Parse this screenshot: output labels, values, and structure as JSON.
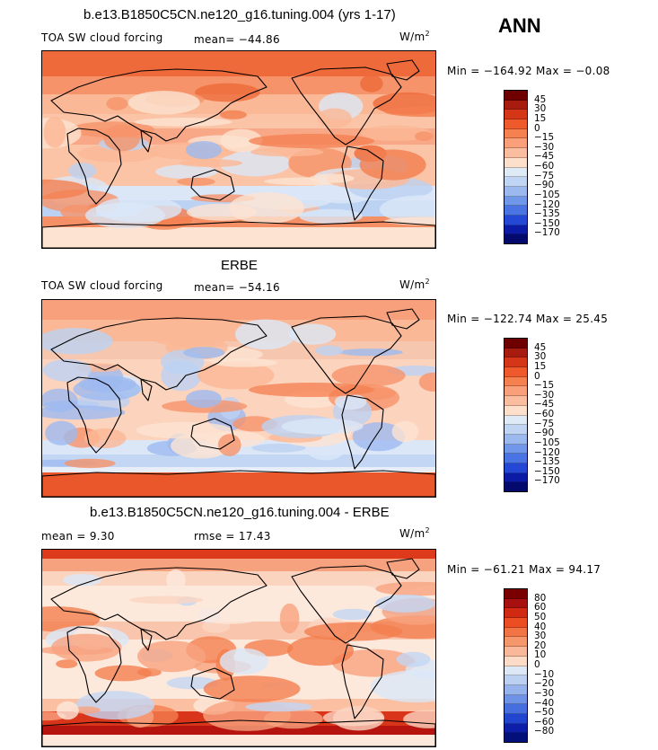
{
  "header": {
    "season": "ANN"
  },
  "panels": [
    {
      "title": "b.e13.B1850C5CN.ne120_g16.tuning.004 (yrs 1-17)",
      "left_label": "TOA SW cloud forcing",
      "mid_label": "mean= −44.86",
      "units": "W/m",
      "units_exp": "2",
      "minmax": "Min = −164.92 Max =  −0.08",
      "colorbar_labels": [
        "45",
        "30",
        "15",
        "0",
        "−15",
        "−30",
        "−45",
        "−60",
        "−75",
        "−90",
        "−105",
        "−120",
        "−135",
        "−150",
        "−170"
      ],
      "colorbar_colors": [
        "#6e0000",
        "#a81b0f",
        "#d43617",
        "#ee5a2b",
        "#f4814f",
        "#f9a07b",
        "#fbbd9f",
        "#fde0cc",
        "#dfeaf7",
        "#c0d4f4",
        "#9bb9ef",
        "#7097ea",
        "#4a73e4",
        "#2547d6",
        "#0b1ba6",
        "#030a6b"
      ],
      "map_style": "model"
    },
    {
      "title": "ERBE",
      "left_label": "TOA SW cloud forcing",
      "mid_label": "mean= −54.16",
      "units": "W/m",
      "units_exp": "2",
      "minmax": "Min = −122.74 Max =  25.45",
      "colorbar_labels": [
        "45",
        "30",
        "15",
        "0",
        "−15",
        "−30",
        "−45",
        "−60",
        "−75",
        "−90",
        "−105",
        "−120",
        "−135",
        "−150",
        "−170"
      ],
      "colorbar_colors": [
        "#6e0000",
        "#a81b0f",
        "#d43617",
        "#ee5a2b",
        "#f4814f",
        "#f9a07b",
        "#fbbd9f",
        "#fde0cc",
        "#dfeaf7",
        "#c0d4f4",
        "#9bb9ef",
        "#7097ea",
        "#4a73e4",
        "#2547d6",
        "#0b1ba6",
        "#030a6b"
      ],
      "map_style": "obs"
    },
    {
      "title": "b.e13.B1850C5CN.ne120_g16.tuning.004 - ERBE",
      "left_label": "mean =    9.30",
      "mid_label": "rmse =   17.43",
      "units": "W/m",
      "units_exp": "2",
      "minmax": "Min = −61.21 Max =  94.17",
      "colorbar_labels": [
        "80",
        "60",
        "50",
        "40",
        "30",
        "20",
        "10",
        "0",
        "−10",
        "−20",
        "−30",
        "−40",
        "−50",
        "−60",
        "−80"
      ],
      "colorbar_colors": [
        "#7a0000",
        "#a80f0f",
        "#d22a12",
        "#ec4d22",
        "#f27445",
        "#f6976b",
        "#f9b899",
        "#fcdcc7",
        "#dde8f6",
        "#bcd0f2",
        "#96b3ed",
        "#6d92e6",
        "#466edf",
        "#2245cf",
        "#0d1fa8",
        "#04107a"
      ],
      "map_style": "diff"
    }
  ]
}
